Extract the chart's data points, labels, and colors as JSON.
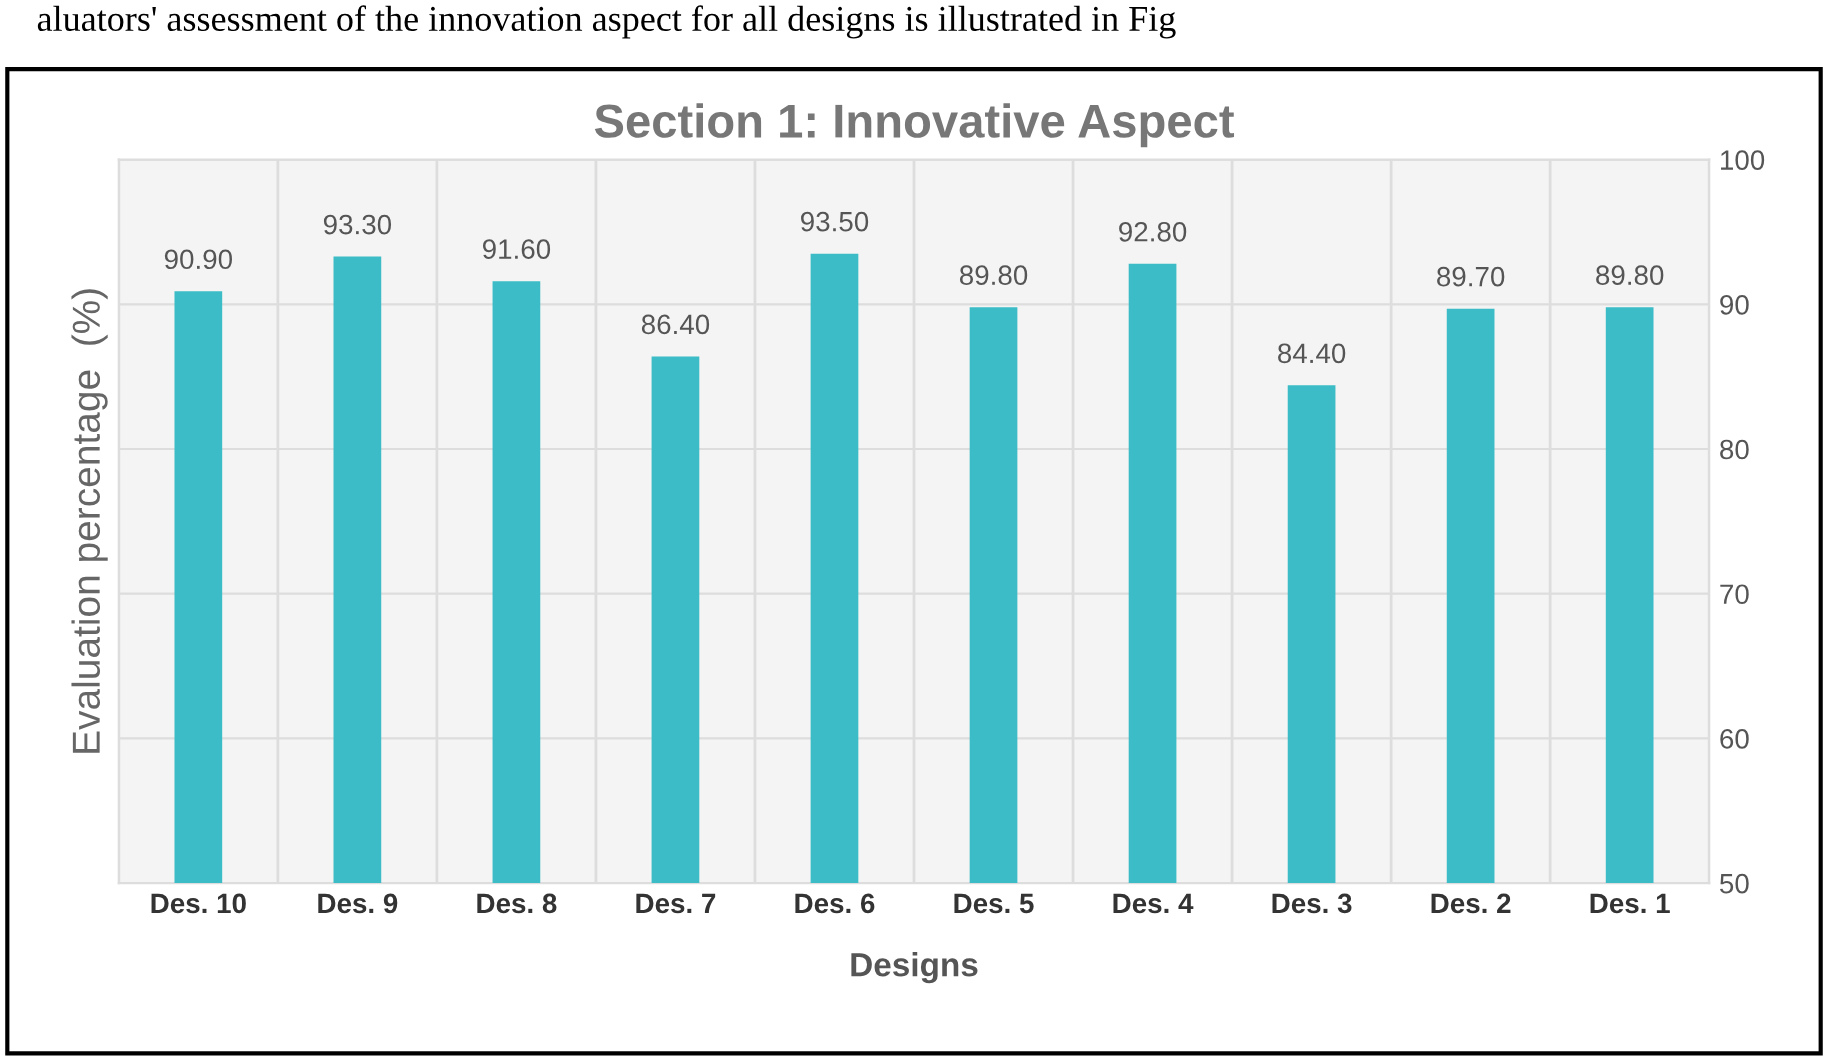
{
  "chart_data": {
    "type": "bar",
    "title": "Section 1: Innovative Aspect",
    "xlabel": "Designs",
    "ylabel": "Evaluation percentage  (%)",
    "annotations": [
      "aluators' assessment of the innovation aspect for all designs is illustrated in Fig"
    ],
    "categories": [
      "Des. 10",
      "Des. 9",
      "Des. 8",
      "Des. 7",
      "Des. 6",
      "Des. 5",
      "Des. 4",
      "Des. 3",
      "Des. 2",
      "Des. 1"
    ],
    "values": [
      90.9,
      93.3,
      91.6,
      86.4,
      93.5,
      89.8,
      92.8,
      84.4,
      89.7,
      89.8
    ],
    "value_labels": [
      "90.90",
      "93.30",
      "91.60",
      "86.40",
      "93.50",
      "89.80",
      "92.80",
      "84.40",
      "89.70",
      "89.80"
    ],
    "color": "#3bbcc6",
    "ylim": [
      50,
      100
    ],
    "yticks": [
      50,
      60,
      70,
      80,
      90,
      100
    ],
    "grid": true
  }
}
